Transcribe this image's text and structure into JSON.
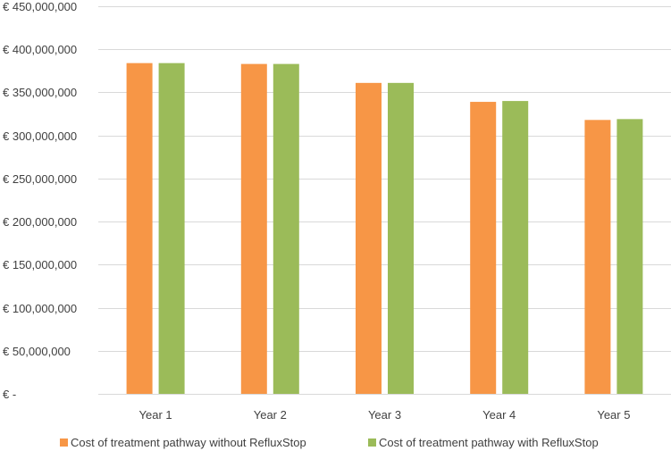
{
  "chart_data": {
    "type": "bar",
    "title": "",
    "xlabel": "",
    "ylabel": "",
    "categories": [
      "Year 1",
      "Year 2",
      "Year 3",
      "Year 4",
      "Year 5"
    ],
    "series": [
      {
        "name": "Cost of treatment pathway without RefluxStop",
        "color": "#f79646",
        "values": [
          384000000,
          383000000,
          361000000,
          339000000,
          318000000
        ]
      },
      {
        "name": "Cost of treatment pathway with RefluxStop",
        "color": "#9bbb59",
        "values": [
          384000000,
          383000000,
          361000000,
          340000000,
          319000000
        ]
      }
    ],
    "ylim": [
      0,
      450000000
    ],
    "ytick_values": [
      0,
      50000000,
      100000000,
      150000000,
      200000000,
      250000000,
      300000000,
      350000000,
      400000000,
      450000000
    ],
    "ytick_labels": [
      "€ -",
      "€ 50,000,000",
      "€ 100,000,000",
      "€ 150,000,000",
      "€ 200,000,000",
      "€ 250,000,000",
      "€ 300,000,000",
      "€ 350,000,000",
      "€ 400,000,000",
      "€ 450,000,000"
    ],
    "grid": true,
    "legend_position": "bottom",
    "gridline_color": "#d9d9d9"
  }
}
